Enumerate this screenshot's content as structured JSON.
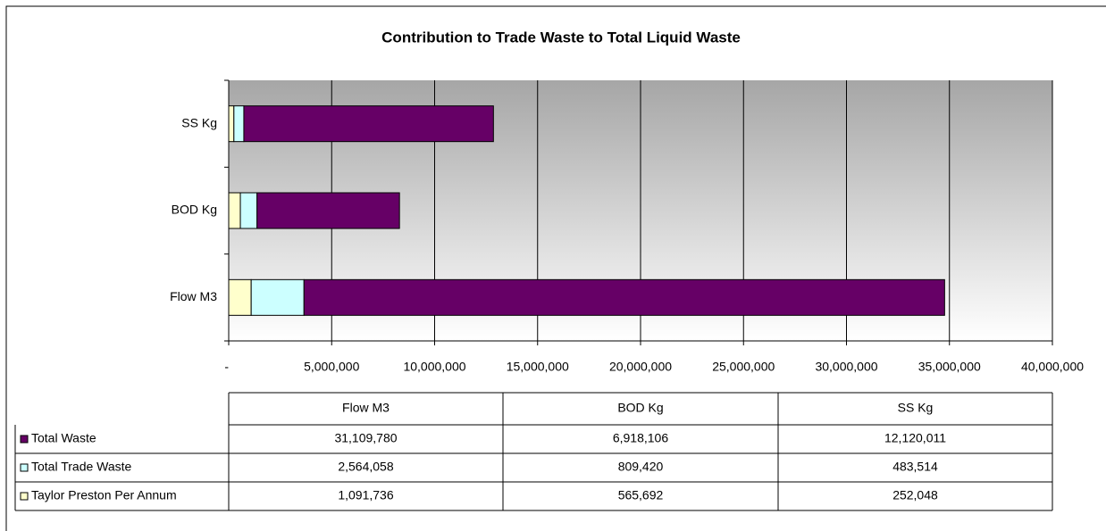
{
  "chart_data": {
    "type": "stacked_bar_horizontal",
    "title": "Contribution to Trade Waste to Total Liquid Waste",
    "categories": [
      "Flow M3",
      "BOD Kg",
      "SS Kg"
    ],
    "series": [
      {
        "name": "Total Waste",
        "color": "#660066",
        "values": [
          31109780,
          6918106,
          12120011
        ],
        "value_labels": [
          "31,109,780",
          "6,918,106",
          "12,120,011"
        ]
      },
      {
        "name": "Total Trade Waste",
        "color": "#ccffff",
        "values": [
          2564058,
          809420,
          483514
        ],
        "value_labels": [
          "2,564,058",
          "809,420",
          "483,514"
        ]
      },
      {
        "name": "Taylor Preston Per Annum",
        "color": "#ffffcc",
        "values": [
          1091736,
          565692,
          252048
        ],
        "value_labels": [
          "1,091,736",
          "565,692",
          "252,048"
        ]
      }
    ],
    "xlim": [
      0,
      40000000
    ],
    "xticks": [
      {
        "value": 0,
        "label": "-"
      },
      {
        "value": 5000000,
        "label": "5,000,000"
      },
      {
        "value": 10000000,
        "label": "10,000,000"
      },
      {
        "value": 15000000,
        "label": "15,000,000"
      },
      {
        "value": 20000000,
        "label": "20,000,000"
      },
      {
        "value": 25000000,
        "label": "25,000,000"
      },
      {
        "value": 30000000,
        "label": "30,000,000"
      },
      {
        "value": 35000000,
        "label": "35,000,000"
      },
      {
        "value": 40000000,
        "label": "40,000,000"
      }
    ],
    "grid": true
  }
}
